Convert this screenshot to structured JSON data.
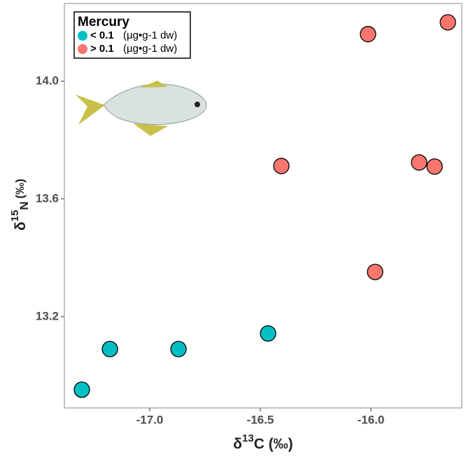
{
  "chart_data": {
    "type": "scatter",
    "x_label": {
      "symbol": "δ",
      "sup": "13",
      "rest": "C (‰)"
    },
    "y_label": {
      "symbol": "δ",
      "sup": "15",
      "sub": "N",
      "rest": "(‰)"
    },
    "legend_title": "Mercury",
    "legend_unit": "(µg•g-1 dw)",
    "legend_position": "top-left",
    "series": [
      {
        "name": "< 0.1",
        "color": "#00bfc4",
        "x": [
          -17.307,
          -17.18,
          -16.87,
          -16.465
        ],
        "y": [
          12.952,
          13.09,
          13.09,
          13.143
        ]
      },
      {
        "name": "> 0.1",
        "color": "#f8766d",
        "x": [
          -16.405,
          -16.013,
          -15.652,
          -15.782,
          -15.712,
          -15.981
        ],
        "y": [
          13.712,
          14.16,
          14.2,
          13.724,
          13.71,
          13.352
        ]
      }
    ],
    "xlim": [
      -17.386,
      -15.589
    ],
    "ylim": [
      12.89,
      14.264
    ],
    "xticks": [
      {
        "value": -17,
        "label": "-17.0"
      },
      -16.5,
      {
        "value": -16,
        "label": "-16.0"
      }
    ],
    "yticks": [
      {
        "value": 13.2,
        "label": "13.2"
      },
      13.6,
      {
        "value": 14,
        "label": "14.0"
      }
    ],
    "grid": false
  }
}
